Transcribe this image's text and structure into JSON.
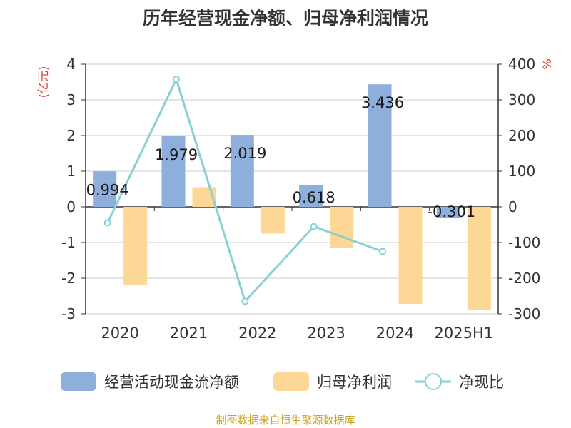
{
  "title": "历年经营现金净额、归母净利润情况",
  "source": "制图数据来自恒生聚源数据库",
  "chart_data": {
    "type": "bar",
    "categories": [
      "2020",
      "2021",
      "2022",
      "2023",
      "2024",
      "2025H1"
    ],
    "left_axis": {
      "unit": "(亿元)",
      "range": [
        -3,
        4
      ],
      "ticks": [
        "-3",
        "-2",
        "-1",
        "0",
        "1",
        "2",
        "3",
        "4"
      ]
    },
    "right_axis": {
      "unit": "%",
      "range": [
        -300,
        400
      ],
      "ticks": [
        "-300",
        "-200",
        "-100",
        "0",
        "100",
        "200",
        "300",
        "400"
      ]
    },
    "series": [
      {
        "name": "经营活动现金流净额",
        "type": "bar",
        "axis": "left",
        "color": "#8eaedb",
        "values": [
          0.994,
          1.979,
          2.019,
          0.618,
          3.436,
          -0.301
        ],
        "labels": [
          "0.994",
          "1.979",
          "2.019",
          "0.618",
          "3.436",
          "-0.301"
        ]
      },
      {
        "name": "归母净利润",
        "type": "bar",
        "axis": "left",
        "color": "#fdd795",
        "values": [
          -2.2,
          0.55,
          -0.75,
          -1.15,
          -2.72,
          -2.9
        ]
      },
      {
        "name": "净现比",
        "type": "line",
        "axis": "right",
        "color": "#88d1d4",
        "values": [
          -45,
          358,
          -265,
          -55,
          -125,
          null
        ]
      }
    ],
    "legend_position": "bottom",
    "grid": true
  }
}
